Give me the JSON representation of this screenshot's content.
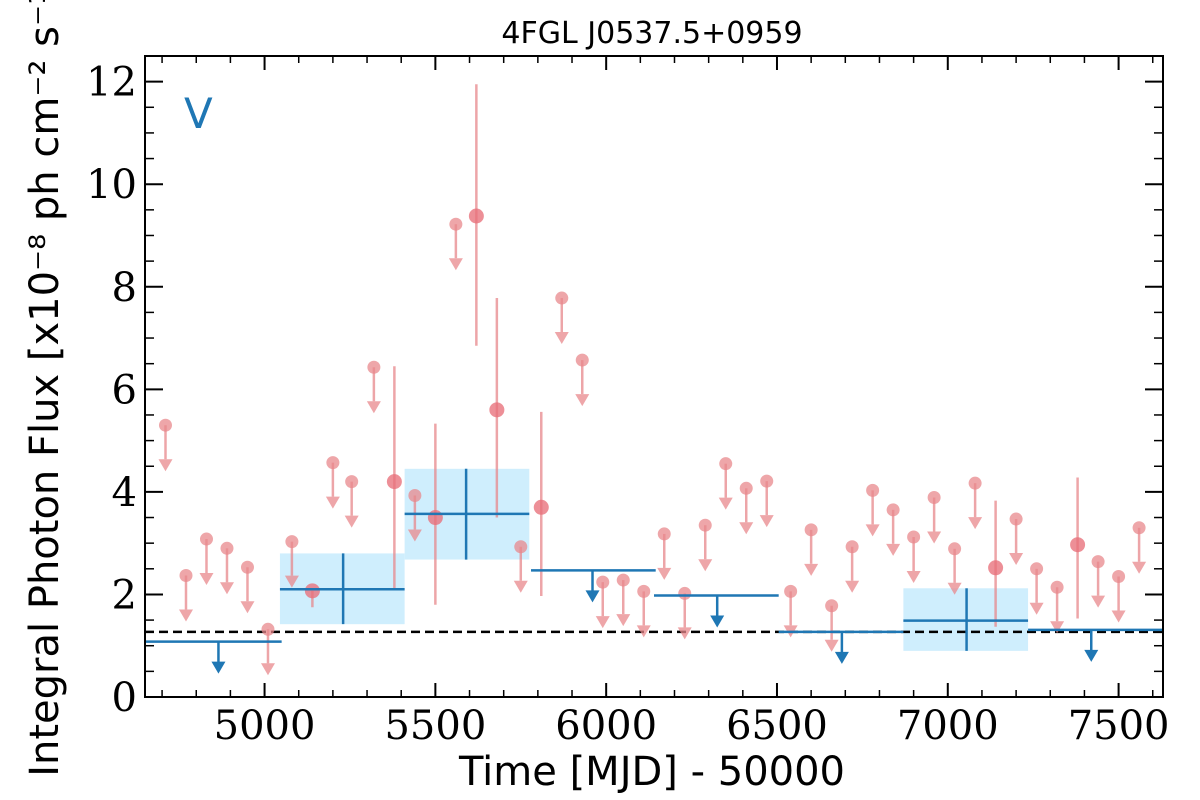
{
  "chart_data": {
    "type": "scatter",
    "title": "4FGL J0537.5+0959",
    "xlabel": "Time [MJD] - 50000",
    "ylabel": "Integral Photon Flux [x10⁻⁸ ph cm⁻² s⁻¹]",
    "band_label": "V",
    "xlim": [
      4650,
      7630
    ],
    "ylim": [
      0,
      12.5
    ],
    "x_ticks": [
      5000,
      5500,
      6000,
      6500,
      7000,
      7500
    ],
    "x_tick_labels": [
      "5000",
      "5500",
      "6000",
      "6500",
      "7000",
      "7500"
    ],
    "y_ticks": [
      0,
      2,
      4,
      6,
      8,
      10,
      12
    ],
    "y_tick_labels": [
      "0",
      "2",
      "4",
      "6",
      "8",
      "10",
      "12"
    ],
    "reference_level": 1.27,
    "colors": {
      "short_bins": "#e8888c",
      "long_bins": "#1f77b4",
      "error_band": "#cfeefd",
      "reference_line": "#000000"
    },
    "series": [
      {
        "name": "short-bin upper limits",
        "kind": "upper_limit",
        "x": [
          4710,
          4770,
          4830,
          4890,
          4950,
          5010,
          5080,
          5200,
          5255,
          5320,
          5440,
          5560,
          5750,
          5870,
          5930,
          5990,
          6050,
          6110,
          6170,
          6230,
          6290,
          6350,
          6410,
          6470,
          6540,
          6600,
          6660,
          6720,
          6780,
          6840,
          6900,
          6960,
          7020,
          7080,
          7200,
          7260,
          7320,
          7440,
          7500,
          7560
        ],
        "y": [
          5.3,
          2.37,
          3.08,
          2.9,
          2.53,
          1.32,
          3.03,
          4.57,
          4.2,
          6.43,
          3.93,
          9.22,
          2.93,
          7.78,
          6.57,
          2.24,
          2.28,
          2.06,
          3.18,
          2.02,
          3.35,
          4.55,
          4.07,
          4.21,
          2.06,
          3.26,
          1.78,
          2.93,
          4.03,
          3.65,
          3.12,
          3.89,
          2.89,
          4.17,
          3.47,
          2.5,
          2.14,
          2.64,
          2.35,
          3.3
        ]
      },
      {
        "name": "short-bin detections",
        "kind": "point_with_error",
        "x": [
          5140,
          5380,
          5500,
          5620,
          5680,
          5810,
          7140,
          7380
        ],
        "y": [
          2.07,
          4.2,
          3.5,
          9.38,
          5.6,
          3.7,
          2.52,
          2.97
        ],
        "y_low": [
          1.75,
          2.1,
          1.8,
          6.85,
          3.5,
          1.97,
          1.37,
          1.53
        ],
        "y_high": [
          2.07,
          6.45,
          5.33,
          11.95,
          7.78,
          5.56,
          3.83,
          4.28
        ]
      },
      {
        "name": "long-bin upper limits",
        "kind": "upper_limit_bar",
        "x_start": [
          4650,
          5780,
          6140,
          6505,
          7235
        ],
        "x_end": [
          5050,
          6145,
          6505,
          6870,
          7630
        ],
        "x_marker": [
          4865,
          5960,
          6325,
          6690,
          7420
        ],
        "y": [
          1.08,
          2.47,
          1.98,
          1.27,
          1.31
        ]
      },
      {
        "name": "long-bin detections",
        "kind": "bin_with_error_band",
        "x_start": [
          5045,
          5410,
          6870
        ],
        "x_end": [
          5410,
          5775,
          7235
        ],
        "x_center": [
          5230,
          5590,
          7055
        ],
        "y": [
          2.1,
          3.57,
          1.49
        ],
        "y_low": [
          1.42,
          2.68,
          0.9
        ],
        "y_high": [
          2.8,
          4.45,
          2.12
        ]
      }
    ]
  }
}
